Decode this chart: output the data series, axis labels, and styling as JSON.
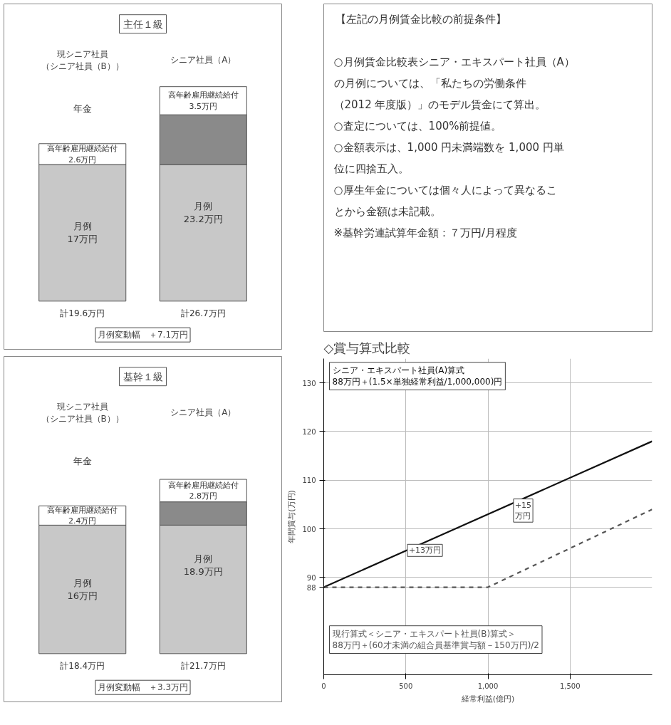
{
  "chart_data": [
    {
      "type": "bar",
      "stacked": true,
      "title": "主任１級",
      "categories": [
        "現シニア社員（シニア社員（B））",
        "シニア社員（A）"
      ],
      "series": [
        {
          "color": "#c8c8c8",
          "values": [
            17,
            17
          ],
          "value_labels": [
            "月例\n17万円",
            null
          ]
        },
        {
          "color": "#8a8a8a",
          "values": [
            null,
            6.2
          ]
        },
        {
          "color": "#ffffff",
          "values": [
            2.6,
            3.5
          ],
          "value_labels": [
            "高年齢雇用継続給付\n2.6万円",
            "高年齢雇用継続給付\n3.5万円"
          ]
        }
      ],
      "totals": [
        "計19.6万円",
        "計26.7万円"
      ],
      "annotations": [
        "月例\n23.2万円",
        "年金",
        "月例変動幅　＋7.1万円"
      ]
    },
    {
      "type": "bar",
      "stacked": true,
      "title": "基幹１級",
      "categories": [
        "現シニア社員（シニア社員（B））",
        "シニア社員（A）"
      ],
      "series": [
        {
          "color": "#c8c8c8",
          "values": [
            16,
            16
          ],
          "value_labels": [
            "月例\n16万円",
            null
          ]
        },
        {
          "color": "#8a8a8a",
          "values": [
            null,
            2.9
          ]
        },
        {
          "color": "#ffffff",
          "values": [
            2.4,
            2.8
          ],
          "value_labels": [
            "高年齢雇用継続給付\n2.4万円",
            "高年齢雇用継続給付\n2.8万円"
          ]
        }
      ],
      "totals": [
        "計18.4万円",
        "計21.7万円"
      ],
      "annotations": [
        "月例\n18.9万円",
        "年金",
        "月例変動幅　＋3.3万円"
      ]
    },
    {
      "type": "other",
      "title": "【左記の月例賃金比較の前提条件】",
      "annotations": [
        "○月例賃金比較表シニア・エキスパート社員（A）",
        "の月例については、「私たちの労働条件",
        "（2012 年度版）」のモデル賃金にて算出。",
        "○査定については、100%前提値。",
        "○金額表示は、1,000 円未満端数を 1,000 円単",
        "位に四捨五入。",
        "○厚生年金については個々人によって異なるこ",
        "とから金額は未記載。",
        "※基幹労連試算年金額：７万円/月程度"
      ]
    },
    {
      "type": "line",
      "title": "◇賞与算式比較",
      "xlabel": "経常利益(億円)",
      "ylabel": "年間賞与(万円)",
      "xlim": [
        0,
        2000
      ],
      "ylim": [
        70,
        135
      ],
      "xticks": [
        0,
        500,
        {
          "value": 1000,
          "label": "1,000"
        },
        {
          "value": 1500,
          "label": "1,500"
        }
      ],
      "yticks": [
        {
          "value": 88,
          "label": "88"
        },
        90,
        100,
        110,
        120,
        130
      ],
      "grid": true,
      "series": [
        {
          "name": "シニア・エキスパート社員(A)算式\n88万円＋(1.5×単独経常利益/1,000,000)円",
          "color": "#111111",
          "x": [
            0,
            2000
          ],
          "values": [
            88,
            118
          ],
          "line_style": "solid"
        },
        {
          "name": "現行算式＜シニア・エキスパート社員(B)算式＞\n88万円＋(60才未満の組合員基準賞与額－150万円)/2",
          "color": "#555555",
          "x": [
            0,
            1000,
            2000
          ],
          "values": [
            88,
            88,
            104
          ],
          "line_style": "dashed"
        }
      ],
      "annotations": [
        "+13万円",
        "+15\n万円"
      ]
    }
  ]
}
